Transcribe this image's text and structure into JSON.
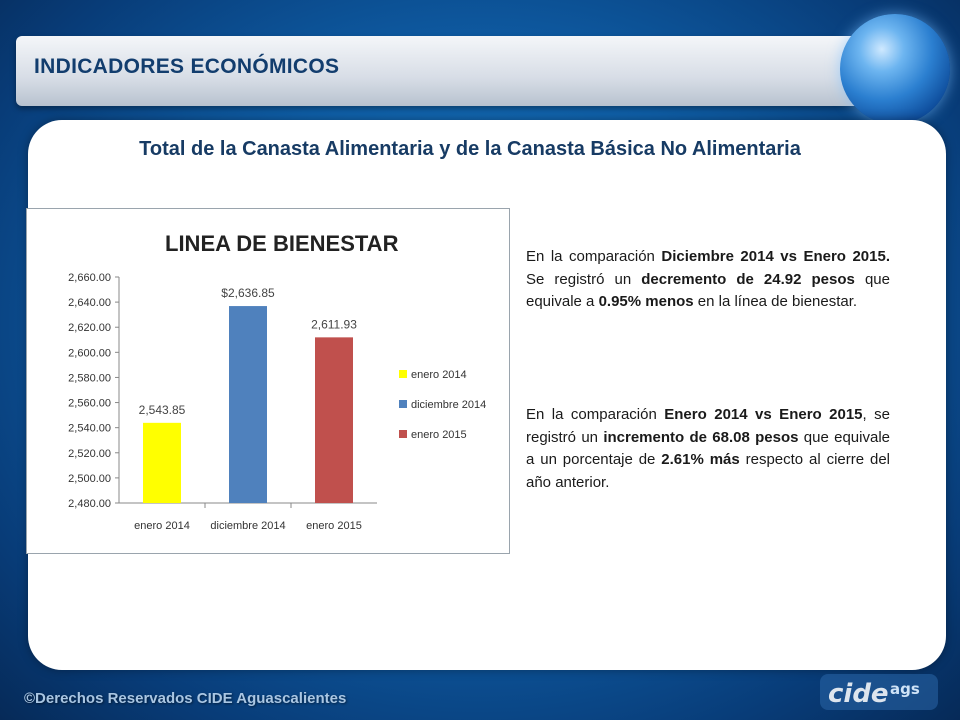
{
  "header": {
    "title": "INDICADORES ECONÓMICOS"
  },
  "main": {
    "title": "Total de la Canasta Alimentaria y de la Canasta Básica No Alimentaria"
  },
  "chart_data": {
    "type": "bar",
    "title": "LINEA DE BIENESTAR",
    "categories": [
      "enero 2014",
      "diciembre 2014",
      "enero 2015"
    ],
    "values": [
      2543.85,
      2636.85,
      2611.93
    ],
    "data_labels": [
      "2,543.85",
      "$2,636.85",
      "2,611.93"
    ],
    "colors": [
      "#ffff00",
      "#4f81bd",
      "#c0504d"
    ],
    "ylim": [
      2480,
      2660
    ],
    "ytick_labels": [
      "2,660.00",
      "2,640.00",
      "2,620.00",
      "2,600.00",
      "2,580.00",
      "2,560.00",
      "2,540.00",
      "2,520.00",
      "2,500.00",
      "2,480.00"
    ],
    "yticks": [
      2660,
      2640,
      2620,
      2600,
      2580,
      2560,
      2540,
      2520,
      2500,
      2480
    ],
    "legend": [
      "enero 2014",
      "diciembre 2014",
      "enero 2015"
    ],
    "legend_position": "right",
    "grid": false
  },
  "paragraph1": {
    "t1": "En la comparación ",
    "b1": "Diciembre 2014 vs Enero 2015.",
    "t2": " Se registró un ",
    "b2": "decremento de 24.92 pesos",
    "t3": " que equivale a ",
    "b3": "0.95% menos",
    "t4": " en la línea de bienestar."
  },
  "paragraph2": {
    "t1": "En la comparación ",
    "b1": "Enero 2014 vs Enero 2015",
    "t2": ", se registró un ",
    "b2": "incremento de 68.08 pesos",
    "t3": " que equivale a un porcentaje de ",
    "b3": "2.61% más",
    "t4": " respecto al cierre del año anterior."
  },
  "footer": {
    "copyright": "©Derechos Reservados CIDE Aguascalientes",
    "logo_text": "cide ags"
  }
}
